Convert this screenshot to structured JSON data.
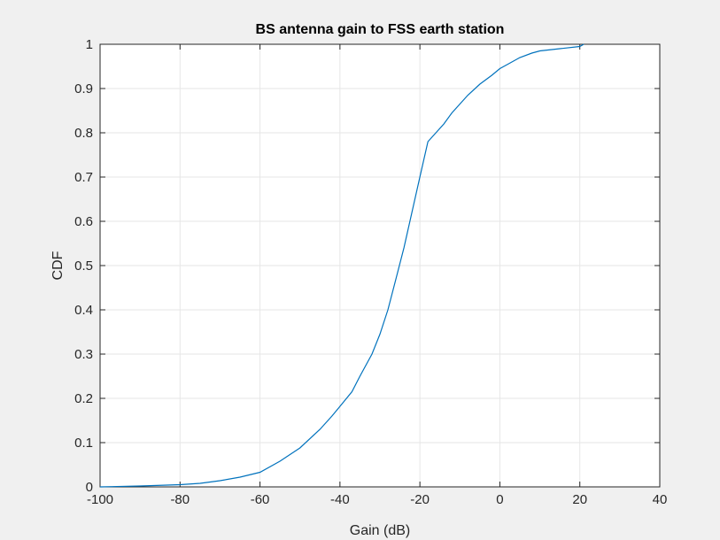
{
  "chart_data": {
    "type": "line",
    "title": "BS antenna gain to FSS earth station",
    "xlabel": "Gain (dB)",
    "ylabel": "CDF",
    "xlim": [
      -100,
      40
    ],
    "ylim": [
      0,
      1
    ],
    "xticks": [
      -100,
      -80,
      -60,
      -40,
      -20,
      0,
      20,
      40
    ],
    "yticks": [
      0,
      0.1,
      0.2,
      0.3,
      0.4,
      0.5,
      0.6,
      0.7,
      0.8,
      0.9,
      1
    ],
    "xtick_labels": [
      "-100",
      "-80",
      "-60",
      "-40",
      "-20",
      "0",
      "20",
      "40"
    ],
    "ytick_labels": [
      "0",
      "0.1",
      "0.2",
      "0.3",
      "0.4",
      "0.5",
      "0.6",
      "0.7",
      "0.8",
      "0.9",
      "1"
    ],
    "grid": true,
    "series": [
      {
        "color": "#0072bd",
        "x": [
          -100,
          -90,
          -80,
          -75,
          -70,
          -65,
          -60,
          -55,
          -50,
          -45,
          -42,
          -40,
          -37,
          -35,
          -32,
          -30,
          -28,
          -26,
          -24,
          -22,
          -20,
          -18,
          -16,
          -14,
          -12,
          -10,
          -8,
          -5,
          -2,
          0,
          2,
          5,
          8,
          10,
          15,
          20,
          21
        ],
        "y": [
          0,
          0.002,
          0.005,
          0.008,
          0.014,
          0.022,
          0.033,
          0.058,
          0.088,
          0.13,
          0.16,
          0.182,
          0.215,
          0.25,
          0.3,
          0.345,
          0.4,
          0.47,
          0.54,
          0.62,
          0.7,
          0.78,
          0.8,
          0.82,
          0.845,
          0.865,
          0.885,
          0.91,
          0.93,
          0.945,
          0.955,
          0.97,
          0.98,
          0.985,
          0.99,
          0.995,
          1.0
        ]
      }
    ]
  },
  "colors": {
    "figure_bg": "#f0f0f0",
    "axes_bg": "#ffffff",
    "grid": "#e6e6e6",
    "axis": "#262626",
    "line": "#0072bd"
  }
}
